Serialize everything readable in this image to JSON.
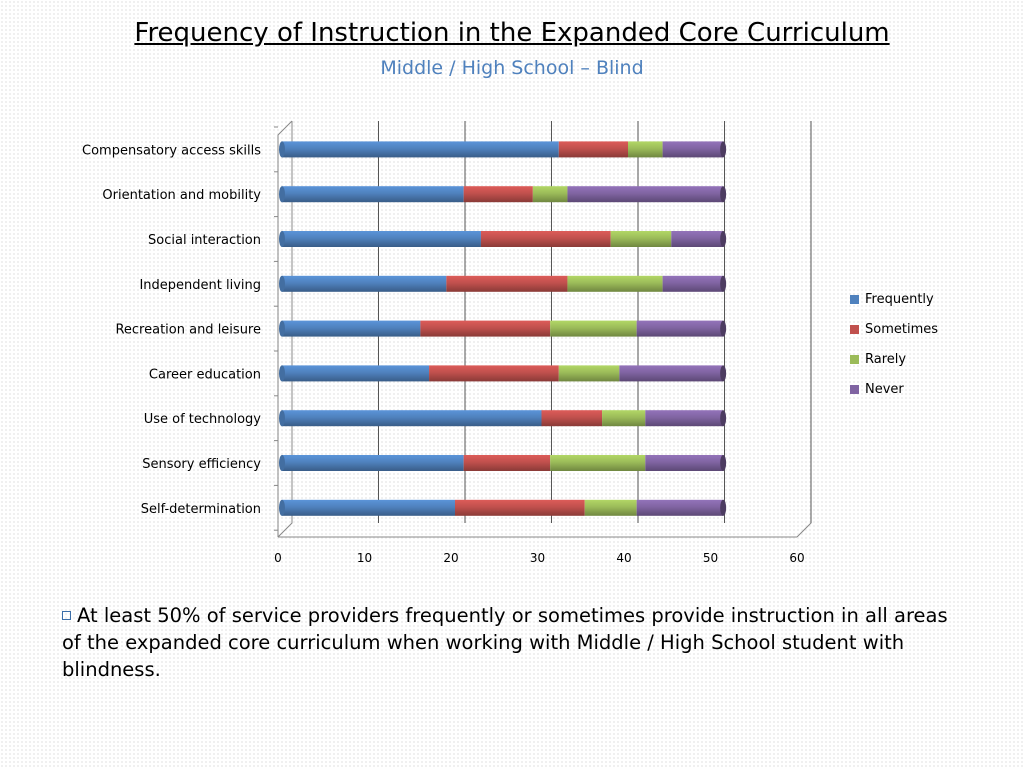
{
  "slide": {
    "title": "Frequency of Instruction in the Expanded Core Curriculum",
    "subtitle": "Middle / High School – Blind",
    "bullet_text": "At least 50% of service providers frequently or sometimes provide instruction in all areas of the expanded core curriculum when working with Middle / High School student with blindness."
  },
  "chart_data": {
    "type": "bar",
    "orientation": "horizontal",
    "stacked": true,
    "categories": [
      "Compensatory access skills",
      "Orientation and mobility",
      "Social interaction",
      "Independent living",
      "Recreation and leisure",
      "Career education",
      "Use of technology",
      "Sensory efficiency",
      "Self-determination"
    ],
    "series": [
      {
        "name": "Frequently",
        "color": "#4f81bd",
        "values": [
          32,
          21,
          23,
          19,
          16,
          17,
          30,
          21,
          20
        ]
      },
      {
        "name": "Sometimes",
        "color": "#c0504d",
        "values": [
          8,
          8,
          15,
          14,
          15,
          15,
          7,
          10,
          15
        ]
      },
      {
        "name": "Rarely",
        "color": "#9bbb59",
        "values": [
          4,
          4,
          7,
          11,
          10,
          7,
          5,
          11,
          6
        ]
      },
      {
        "name": "Never",
        "color": "#8064a2",
        "values": [
          7,
          18,
          6,
          7,
          10,
          12,
          9,
          9,
          10
        ]
      }
    ],
    "xlim": [
      0,
      60
    ],
    "xticks": [
      0,
      10,
      20,
      30,
      40,
      50,
      60
    ],
    "legend_position": "right",
    "grid": true
  }
}
